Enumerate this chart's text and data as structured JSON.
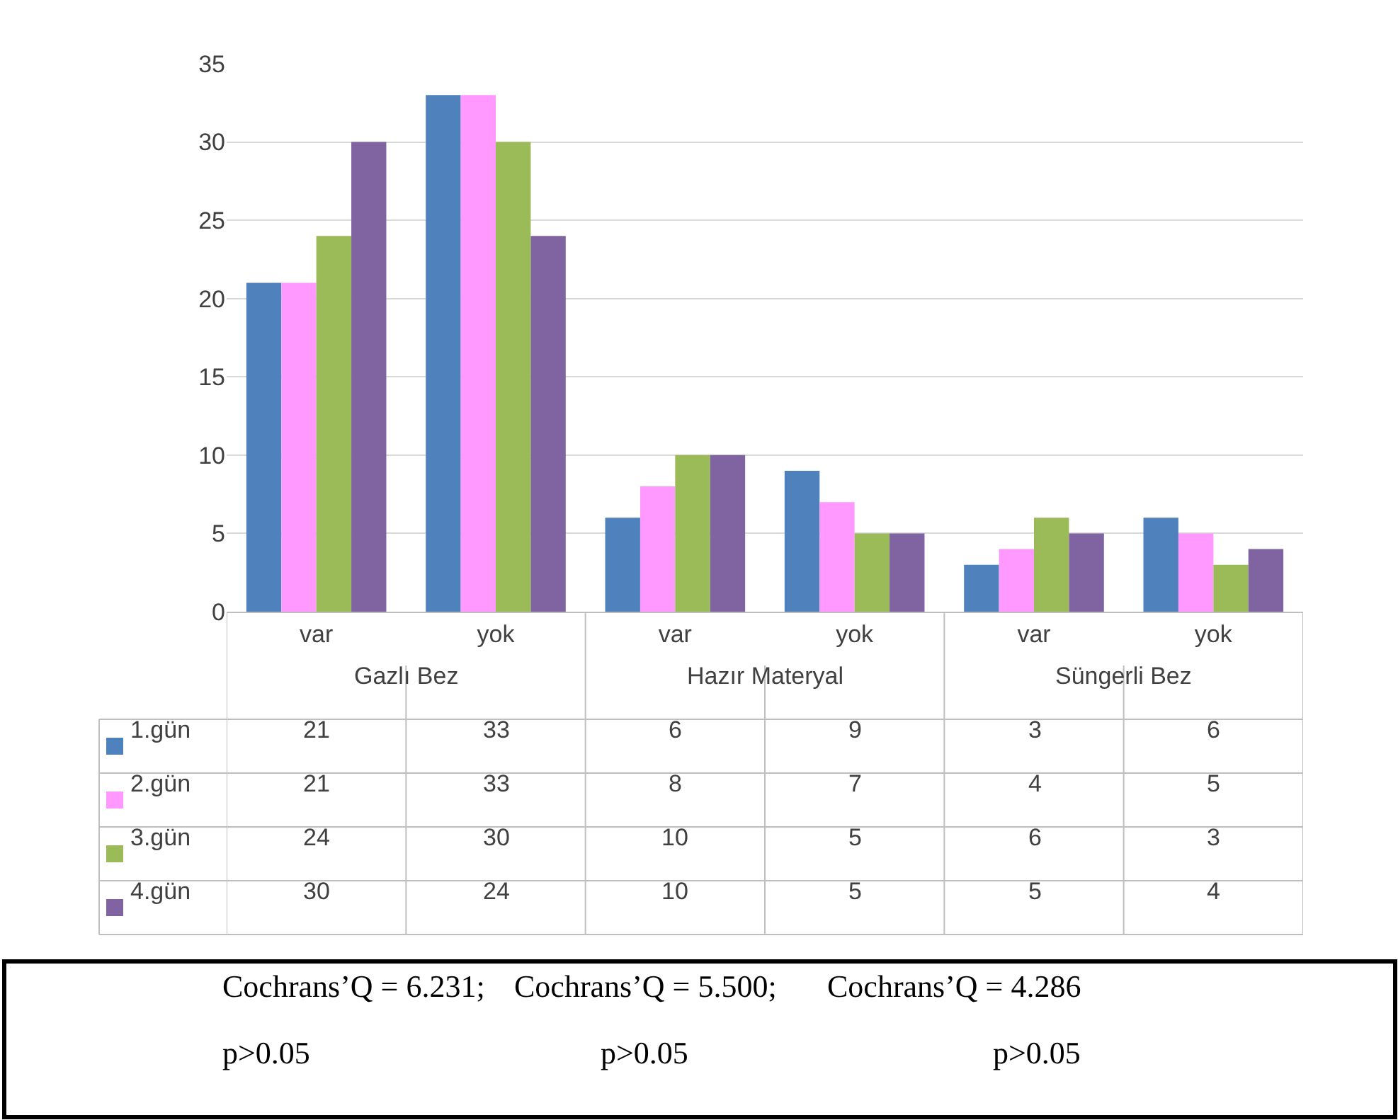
{
  "chart_data": {
    "type": "bar",
    "categories": [
      "var",
      "yok",
      "var",
      "yok",
      "var",
      "yok"
    ],
    "series": [
      {
        "name": "1.gün",
        "color": "#4f81bd",
        "values": [
          21,
          33,
          6,
          9,
          3,
          6
        ]
      },
      {
        "name": "2.gün",
        "color": "#ff99ff",
        "values": [
          21,
          33,
          8,
          7,
          4,
          5
        ]
      },
      {
        "name": "3.gün",
        "color": "#9bbb59",
        "values": [
          24,
          30,
          10,
          5,
          6,
          3
        ]
      },
      {
        "name": "4.gün",
        "color": "#8064a2",
        "values": [
          30,
          24,
          10,
          5,
          5,
          4
        ]
      }
    ],
    "ylim": [
      0,
      35
    ],
    "yticks": [
      0,
      5,
      10,
      15,
      20,
      25,
      30,
      35
    ],
    "grid": "y",
    "legend": "bottom left",
    "data_labels": true,
    "annotations": [
      "Gazlı Bez",
      "Hazır Materyal",
      "Süngerli Bez",
      "Cochrans’Q = 6.231;",
      "Cochrans’Q = 5.500;",
      "Cochrans’Q = 4.286",
      "p>0.05",
      "p>0.05",
      "p>0.05"
    ]
  }
}
